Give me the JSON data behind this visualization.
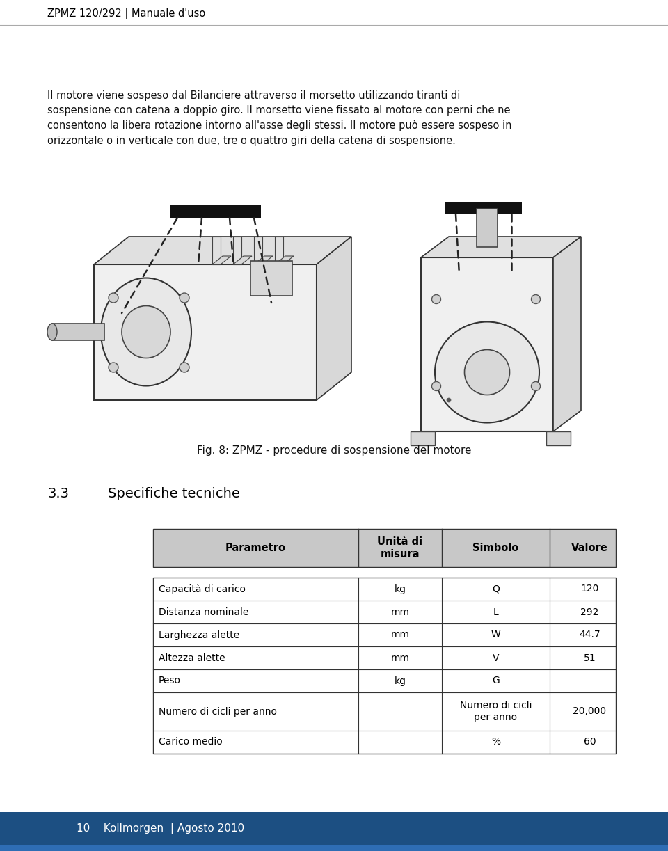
{
  "header_text": "ZPMZ 120/292 | Manuale d'uso",
  "header_color": "#000000",
  "body_text_1": "Il motore viene sospeso dal Bilanciere attraverso il morsetto utilizzando tiranti di\nsospensione con catena a doppio giro. Il morsetto viene fissato al motore con perni che ne\nconsentono la libera rotazione intorno all'asse degli stessi. Il motore può essere sospeso in\norizzontale o in verticale con due, tre o quattro giri della catena di sospensione.",
  "fig_caption": "Fig. 8: ZPMZ - procedure di sospensione del motore",
  "section_label": "3.3",
  "section_title": "Specifiche tecniche",
  "table_headers": [
    "Parametro",
    "Unità di\nmisura",
    "Simbolo",
    "Valore"
  ],
  "table_rows": [
    [
      "Capacità di carico",
      "kg",
      "Q",
      "120"
    ],
    [
      "Distanza nominale",
      "mm",
      "L",
      "292"
    ],
    [
      "Larghezza alette",
      "mm",
      "W",
      "44.7"
    ],
    [
      "Altezza alette",
      "mm",
      "V",
      "51"
    ],
    [
      "Peso",
      "kg",
      "G",
      ""
    ],
    [
      "Numero di cicli per anno",
      "",
      "Numero di cicli\nper anno",
      "20,000"
    ],
    [
      "Carico medio",
      "",
      "%",
      "60"
    ]
  ],
  "footer_bg": "#1c4f82",
  "footer_line_bg": "#2e6db4",
  "footer_text": "10    Kollmorgen  | Agosto 2010",
  "footer_text_color": "#ffffff",
  "page_bg": "#ffffff",
  "text_color": "#111111",
  "table_border_color": "#333333",
  "table_header_bg": "#c0c0c0",
  "body_fontsize": 10.5,
  "header_fontsize": 10.5,
  "section_fontsize": 14,
  "caption_fontsize": 10,
  "table_fontsize": 10
}
